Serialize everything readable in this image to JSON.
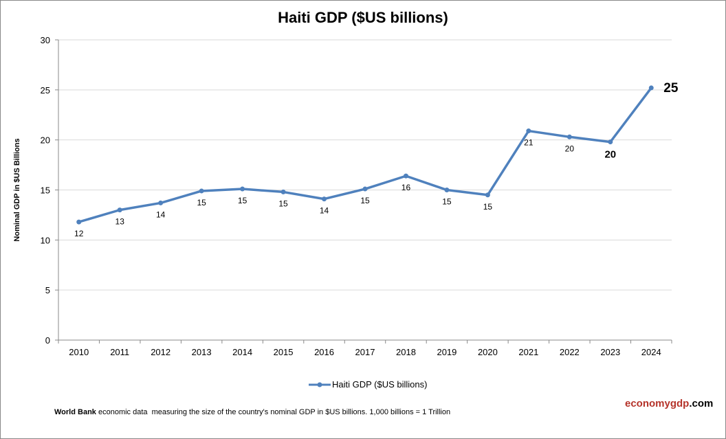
{
  "chart_data": {
    "type": "line",
    "title": "Haiti GDP ($US billions)",
    "ylabel": "Nominal GDP in $US Billions",
    "xlabel": "",
    "ylim": [
      0,
      30
    ],
    "yticks": [
      0,
      5,
      10,
      15,
      20,
      25,
      30
    ],
    "grid": true,
    "legend_position": "bottom",
    "categories": [
      "2010",
      "2011",
      "2012",
      "2013",
      "2014",
      "2015",
      "2016",
      "2017",
      "2018",
      "2019",
      "2020",
      "2021",
      "2022",
      "2023",
      "2024"
    ],
    "series": [
      {
        "name": "Haiti GDP ($US billions)",
        "color": "#4f81bd",
        "values": [
          11.8,
          13.0,
          13.7,
          14.9,
          15.1,
          14.8,
          14.1,
          15.1,
          16.4,
          15.0,
          14.5,
          20.9,
          20.3,
          19.8,
          25.2
        ],
        "labels": [
          "12",
          "13",
          "14",
          "15",
          "15",
          "15",
          "14",
          "15",
          "16",
          "15",
          "15",
          "21",
          "20",
          "20",
          "25"
        ]
      }
    ]
  },
  "footer": {
    "source_bold": "World Bank",
    "source_text": " economic data  measuring the size of the country's nominal GDP in $US billions. 1,000 billions = 1 Trillion"
  },
  "logo": {
    "part1": "economygdp",
    "part2": ".com",
    "color": "#b5332a"
  }
}
